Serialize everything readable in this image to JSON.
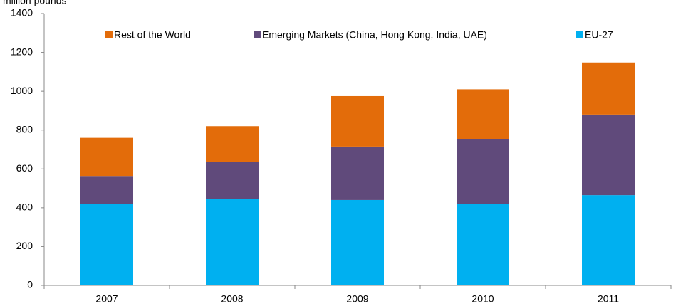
{
  "chart_data": {
    "type": "stacked-bar",
    "y_label": "million pounds",
    "categories": [
      "2007",
      "2008",
      "2009",
      "2010",
      "2011"
    ],
    "series": [
      {
        "name": "EU-27",
        "color": "#00b0f0",
        "values": [
          420,
          445,
          440,
          420,
          465
        ]
      },
      {
        "name": "Emerging Markets (China, Hong Kong, India, UAE)",
        "color": "#604a7b",
        "values": [
          140,
          190,
          275,
          335,
          415
        ]
      },
      {
        "name": "Rest of the World",
        "color": "#e36c0a",
        "values": [
          200,
          185,
          260,
          255,
          268
        ]
      }
    ],
    "ylim": [
      0,
      1400
    ],
    "yticks": [
      0,
      200,
      400,
      600,
      800,
      1000,
      1200,
      1400
    ],
    "grid": false
  }
}
